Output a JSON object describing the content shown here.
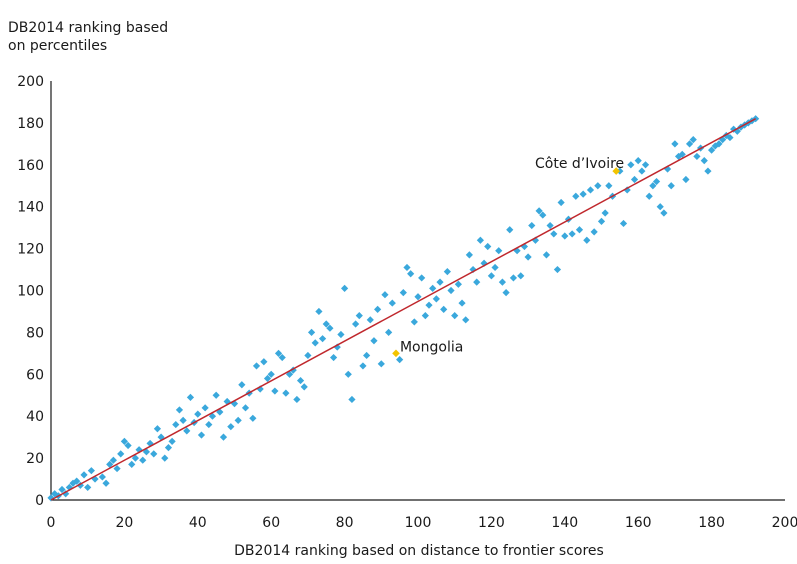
{
  "chart_data": {
    "type": "scatter",
    "ylabel_line1": "DB2014 ranking based",
    "ylabel_line2": "on percentiles",
    "xlabel": "DB2014 ranking based on distance to frontier scores",
    "xlim": [
      0,
      200
    ],
    "ylim": [
      0,
      200
    ],
    "xticks": [
      0,
      20,
      40,
      60,
      80,
      100,
      120,
      140,
      160,
      180,
      200
    ],
    "yticks": [
      0,
      20,
      40,
      60,
      80,
      100,
      120,
      140,
      160,
      180,
      200
    ],
    "grid": false,
    "point_color": "#3aa8dc",
    "highlight_color": "#f2c400",
    "line_color": "#c0282d",
    "fit_line": {
      "x": [
        0,
        192
      ],
      "y": [
        0,
        182
      ]
    },
    "points": [
      [
        0,
        1
      ],
      [
        1,
        3
      ],
      [
        2,
        2
      ],
      [
        3,
        5
      ],
      [
        4,
        3
      ],
      [
        5,
        6
      ],
      [
        6,
        8
      ],
      [
        7,
        9
      ],
      [
        8,
        7
      ],
      [
        9,
        12
      ],
      [
        10,
        6
      ],
      [
        11,
        14
      ],
      [
        12,
        10
      ],
      [
        14,
        11
      ],
      [
        15,
        8
      ],
      [
        16,
        17
      ],
      [
        17,
        19
      ],
      [
        18,
        15
      ],
      [
        19,
        22
      ],
      [
        20,
        28
      ],
      [
        21,
        26
      ],
      [
        22,
        17
      ],
      [
        23,
        20
      ],
      [
        24,
        24
      ],
      [
        25,
        19
      ],
      [
        26,
        23
      ],
      [
        27,
        27
      ],
      [
        28,
        22
      ],
      [
        29,
        34
      ],
      [
        30,
        30
      ],
      [
        31,
        20
      ],
      [
        32,
        25
      ],
      [
        33,
        28
      ],
      [
        34,
        36
      ],
      [
        35,
        43
      ],
      [
        36,
        38
      ],
      [
        37,
        33
      ],
      [
        38,
        49
      ],
      [
        39,
        37
      ],
      [
        40,
        41
      ],
      [
        41,
        31
      ],
      [
        42,
        44
      ],
      [
        43,
        36
      ],
      [
        44,
        40
      ],
      [
        45,
        50
      ],
      [
        46,
        42
      ],
      [
        47,
        30
      ],
      [
        48,
        47
      ],
      [
        49,
        35
      ],
      [
        50,
        46
      ],
      [
        51,
        38
      ],
      [
        52,
        55
      ],
      [
        53,
        44
      ],
      [
        54,
        51
      ],
      [
        55,
        39
      ],
      [
        56,
        64
      ],
      [
        57,
        53
      ],
      [
        58,
        66
      ],
      [
        59,
        58
      ],
      [
        60,
        60
      ],
      [
        61,
        52
      ],
      [
        62,
        70
      ],
      [
        63,
        68
      ],
      [
        64,
        51
      ],
      [
        65,
        60
      ],
      [
        66,
        62
      ],
      [
        67,
        48
      ],
      [
        68,
        57
      ],
      [
        69,
        54
      ],
      [
        70,
        69
      ],
      [
        71,
        80
      ],
      [
        72,
        75
      ],
      [
        73,
        90
      ],
      [
        74,
        77
      ],
      [
        75,
        84
      ],
      [
        76,
        82
      ],
      [
        77,
        68
      ],
      [
        78,
        73
      ],
      [
        79,
        79
      ],
      [
        80,
        101
      ],
      [
        81,
        60
      ],
      [
        82,
        48
      ],
      [
        83,
        84
      ],
      [
        84,
        88
      ],
      [
        85,
        64
      ],
      [
        86,
        69
      ],
      [
        87,
        86
      ],
      [
        88,
        76
      ],
      [
        89,
        91
      ],
      [
        90,
        65
      ],
      [
        91,
        98
      ],
      [
        92,
        80
      ],
      [
        93,
        94
      ],
      [
        95,
        67
      ],
      [
        96,
        99
      ],
      [
        97,
        111
      ],
      [
        98,
        108
      ],
      [
        99,
        85
      ],
      [
        100,
        97
      ],
      [
        101,
        106
      ],
      [
        102,
        88
      ],
      [
        103,
        93
      ],
      [
        104,
        101
      ],
      [
        105,
        96
      ],
      [
        106,
        104
      ],
      [
        107,
        91
      ],
      [
        108,
        109
      ],
      [
        109,
        100
      ],
      [
        110,
        88
      ],
      [
        111,
        103
      ],
      [
        112,
        94
      ],
      [
        113,
        86
      ],
      [
        114,
        117
      ],
      [
        115,
        110
      ],
      [
        116,
        104
      ],
      [
        117,
        124
      ],
      [
        118,
        113
      ],
      [
        119,
        121
      ],
      [
        120,
        107
      ],
      [
        121,
        111
      ],
      [
        122,
        119
      ],
      [
        123,
        104
      ],
      [
        124,
        99
      ],
      [
        125,
        129
      ],
      [
        126,
        106
      ],
      [
        127,
        119
      ],
      [
        128,
        107
      ],
      [
        129,
        121
      ],
      [
        130,
        116
      ],
      [
        131,
        131
      ],
      [
        132,
        124
      ],
      [
        133,
        138
      ],
      [
        134,
        136
      ],
      [
        135,
        117
      ],
      [
        136,
        131
      ],
      [
        137,
        127
      ],
      [
        138,
        110
      ],
      [
        139,
        142
      ],
      [
        140,
        126
      ],
      [
        141,
        134
      ],
      [
        142,
        127
      ],
      [
        143,
        145
      ],
      [
        144,
        129
      ],
      [
        145,
        146
      ],
      [
        146,
        124
      ],
      [
        147,
        148
      ],
      [
        148,
        128
      ],
      [
        149,
        150
      ],
      [
        150,
        133
      ],
      [
        151,
        137
      ],
      [
        152,
        150
      ],
      [
        153,
        145
      ],
      [
        155,
        157
      ],
      [
        156,
        132
      ],
      [
        157,
        148
      ],
      [
        158,
        160
      ],
      [
        159,
        153
      ],
      [
        160,
        162
      ],
      [
        161,
        157
      ],
      [
        162,
        160
      ],
      [
        163,
        145
      ],
      [
        164,
        150
      ],
      [
        165,
        152
      ],
      [
        166,
        140
      ],
      [
        167,
        137
      ],
      [
        168,
        158
      ],
      [
        169,
        150
      ],
      [
        170,
        170
      ],
      [
        171,
        164
      ],
      [
        172,
        165
      ],
      [
        173,
        153
      ],
      [
        174,
        170
      ],
      [
        175,
        172
      ],
      [
        176,
        164
      ],
      [
        177,
        168
      ],
      [
        178,
        162
      ],
      [
        179,
        157
      ],
      [
        180,
        167
      ],
      [
        181,
        169
      ],
      [
        182,
        170
      ],
      [
        183,
        172
      ],
      [
        184,
        174
      ],
      [
        185,
        173
      ],
      [
        186,
        177
      ],
      [
        187,
        176
      ],
      [
        188,
        178
      ],
      [
        189,
        179
      ],
      [
        190,
        180
      ],
      [
        191,
        181
      ],
      [
        192,
        182
      ]
    ],
    "annotations": [
      {
        "label": "Côte d’Ivoire",
        "x": 154,
        "y": 157
      },
      {
        "label": "Mongolia",
        "x": 94,
        "y": 70
      }
    ]
  }
}
